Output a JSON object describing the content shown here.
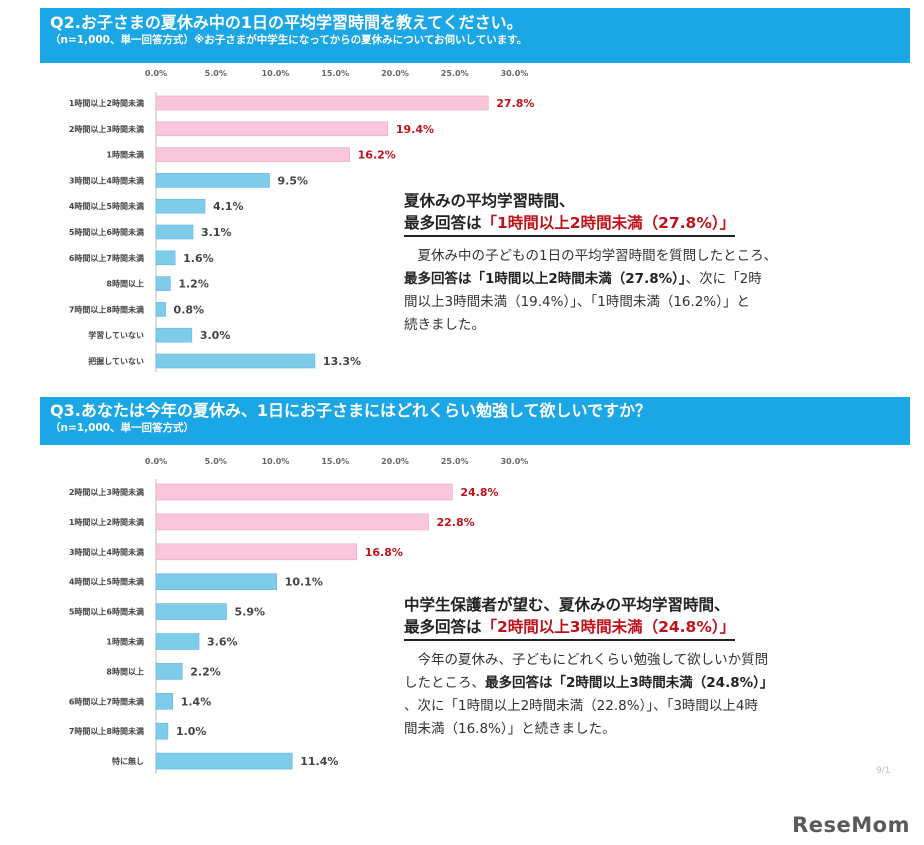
{
  "q2": {
    "title": "Q2.お子さまの夏休み中の1日の平均学習時間を教えてください。",
    "subtitle": "（n=1,000、単一回答方式）※お子さまが中学生になってからの夏休みについてお伺いしています。"
  },
  "q3": {
    "title": "Q3.あなたは今年の夏休み、1日にお子さまにはどれくらい勉強して欲しいですか？",
    "subtitle": "（n=1,000、単一回答方式）"
  },
  "annotation1": {
    "heading_line1": "夏休みの平均学習時間、",
    "heading_line2_prefix": "最多回答は",
    "heading_line2_highlight": "「1時間以上2時間未満（27.8%）」",
    "body_line1": "夏休み中の子どもの1日の平均学習時間を質問したところ、",
    "body_bold": "最多回答は「1時間以上2時間未満（27.8%）」",
    "body_line2_rest": "、次に「2時",
    "body_line3": "間以上3時間未満（19.4%）」、「1時間未満（16.2%）」と",
    "body_line4": "続きました。"
  },
  "annotation2": {
    "heading_line1": "中学生保護者が望む、夏休みの平均学習時間、",
    "heading_line2_prefix": "最多回答は",
    "heading_line2_highlight": "「2時間以上3時間未満（24.8%）」",
    "body_line1": "今年の夏休み、子どもにどれくらい勉強して欲しいか質問",
    "body_line2_prefix": "したところ、",
    "body_bold": "最多回答は「2時間以上3時間未満（24.8%）」",
    "body_line3": "、次に「1時間以上2時間未満（22.8%）」、「3時間以上4時",
    "body_line4": "間未満（16.8%）」と続きました。"
  },
  "logo": {
    "text": "ReseMom"
  },
  "page_number": "9/1",
  "colors": {
    "header_bg": "#1ba6e5",
    "bar_pink": "#f9c6dc",
    "bar_blue": "#7ecbea",
    "highlight_red": "#c0121a",
    "label_red": "#c0121a"
  },
  "chart_data": [
    {
      "type": "bar",
      "orientation": "horizontal",
      "title": "Q2.お子さまの夏休み中の1日の平均学習時間を教えてください。",
      "xlim": [
        0,
        30
      ],
      "ticks": [
        "0.0%",
        "5.0%",
        "10.0%",
        "15.0%",
        "20.0%",
        "25.0%",
        "30.0%"
      ],
      "categories": [
        "1時間以上2時間未満",
        "2時間以上3時間未満",
        "1時間未満",
        "3時間以上4時間未満",
        "4時間以上5時間未満",
        "5時間以上6時間未満",
        "6時間以上7時間未満",
        "8時間以上",
        "7時間以上8時間未満",
        "学習していない",
        "把握していない"
      ],
      "values": [
        27.8,
        19.4,
        16.2,
        9.5,
        4.1,
        3.1,
        1.6,
        1.2,
        0.8,
        3.0,
        13.3
      ],
      "value_labels": [
        "27.8%",
        "19.4%",
        "16.2%",
        "9.5%",
        "4.1%",
        "3.1%",
        "1.6%",
        "1.2%",
        "0.8%",
        "3.0%",
        "13.3%"
      ],
      "highlighted_top": 3,
      "grid": false
    },
    {
      "type": "bar",
      "orientation": "horizontal",
      "title": "Q3.あなたは今年の夏休み、1日にお子さまにはどれくらい勉強して欲しいですか？",
      "xlim": [
        0,
        30
      ],
      "ticks": [
        "0.0%",
        "5.0%",
        "10.0%",
        "15.0%",
        "20.0%",
        "25.0%",
        "30.0%"
      ],
      "categories": [
        "2時間以上3時間未満",
        "1時間以上2時間未満",
        "3時間以上4時間未満",
        "4時間以上5時間未満",
        "5時間以上6時間未満",
        "1時間未満",
        "8時間以上",
        "6時間以上7時間未満",
        "7時間以上8時間未満",
        "特に無し"
      ],
      "values": [
        24.8,
        22.8,
        16.8,
        10.1,
        5.9,
        3.6,
        2.2,
        1.4,
        1.0,
        11.4
      ],
      "value_labels": [
        "24.8%",
        "22.8%",
        "16.8%",
        "10.1%",
        "5.9%",
        "3.6%",
        "2.2%",
        "1.4%",
        "1.0%",
        "11.4%"
      ],
      "highlighted_top": 3,
      "grid": false
    }
  ]
}
